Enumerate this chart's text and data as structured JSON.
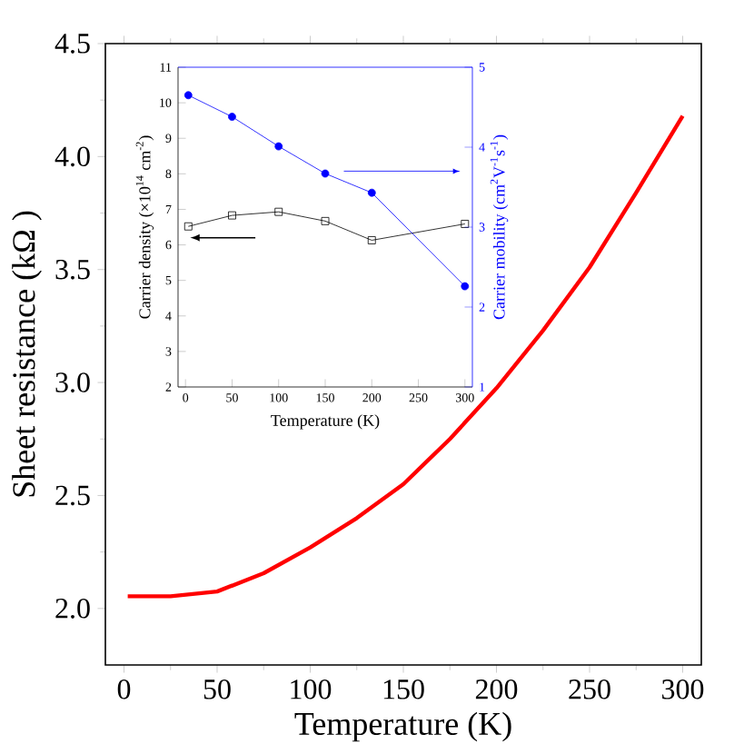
{
  "chart_data": [
    {
      "type": "line",
      "xlabel": "Temperature (K)",
      "ylabel": "Sheet resistance (kΩ )",
      "color": "#ff0000",
      "x": [
        2,
        25,
        50,
        75,
        100,
        125,
        150,
        175,
        200,
        225,
        250,
        275,
        300
      ],
      "values": [
        2.054,
        2.054,
        2.075,
        2.156,
        2.27,
        2.4,
        2.55,
        2.75,
        2.975,
        3.23,
        3.51,
        3.84,
        4.18
      ],
      "xlim": [
        -10,
        310
      ],
      "ylim": [
        1.75,
        4.5
      ],
      "xticks": [
        0,
        50,
        100,
        150,
        200,
        250,
        300
      ],
      "yticks": [
        {
          "value": 2,
          "label": "2.0"
        },
        {
          "value": 2.5,
          "label": "2.5"
        },
        {
          "value": 3,
          "label": "3.0"
        },
        {
          "value": 3.5,
          "label": "3.5"
        },
        {
          "value": 4,
          "label": "4.0"
        },
        {
          "value": 4.5,
          "label": "4.5"
        }
      ]
    },
    {
      "type": "line",
      "xlabel": "Temperature (K)",
      "ylabel": "Carrier density (×10$^{14}$ cm$^{-2}$)",
      "y2label": "Carrier mobility (cm$^{2}$V$^{-1}$s$^{-1}$)",
      "x": [
        3,
        50,
        100,
        150,
        200,
        300
      ],
      "series": [
        {
          "color": "#000000",
          "marker": "square",
          "values": [
            6.52,
            6.83,
            6.93,
            6.67,
            6.13,
            6.59
          ]
        },
        {
          "color": "#0000ff",
          "marker": "circle",
          "axis": "y2",
          "values": [
            4.65,
            4.38,
            4.01,
            3.67,
            3.43,
            2.26
          ]
        }
      ],
      "xlim": [
        -8,
        308
      ],
      "ylim": [
        2,
        11
      ],
      "y2lim": [
        1,
        5
      ],
      "xticks": [
        0,
        50,
        100,
        150,
        200,
        250,
        300
      ],
      "yticks": [
        2,
        3,
        4,
        5,
        6,
        7,
        8,
        9,
        10,
        11
      ],
      "y2ticks": [
        1,
        2,
        3,
        4,
        5
      ]
    }
  ]
}
